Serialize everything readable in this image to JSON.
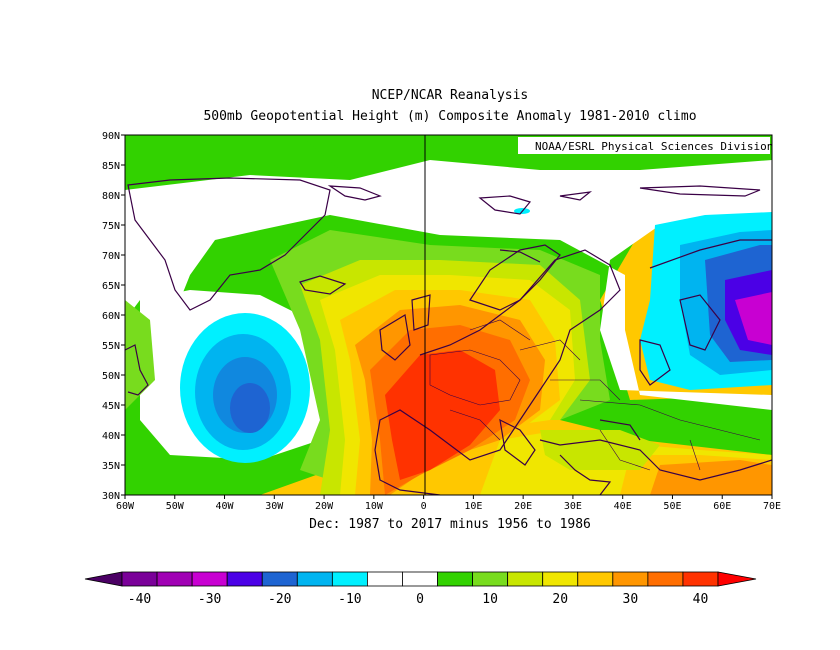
{
  "titles": {
    "line1": "NCEP/NCAR Reanalysis",
    "line2": "500mb Geopotential Height (m) Composite Anomaly 1981-2010 climo",
    "credit": "NOAA/ESRL Physical Sciences Division",
    "period": "Dec: 1987 to 2017 minus 1956 to 1986"
  },
  "map": {
    "lat_ticks": [
      "90N",
      "85N",
      "80N",
      "75N",
      "70N",
      "65N",
      "60N",
      "55N",
      "50N",
      "45N",
      "40N",
      "35N",
      "30N"
    ],
    "lon_ticks": [
      "60W",
      "50W",
      "40W",
      "30W",
      "20W",
      "10W",
      "0",
      "10E",
      "20E",
      "30E",
      "40E",
      "50E",
      "60E",
      "70E"
    ],
    "lat_range": [
      30,
      90
    ],
    "lon_range": [
      -60,
      70
    ],
    "anomaly_centers": [
      {
        "name": "north-atlantic-low",
        "lon": -35,
        "lat": 45,
        "value": -20
      },
      {
        "name": "europe-high",
        "lon": 0,
        "lat": 45,
        "value": 38
      },
      {
        "name": "siberia-low",
        "lon": 68,
        "lat": 58,
        "value": -30
      },
      {
        "name": "arctic-positive",
        "lon": -20,
        "lat": 88,
        "value": 8
      },
      {
        "name": "south-positive",
        "lon": 45,
        "lat": 33,
        "value": 28
      }
    ]
  },
  "colorbar": {
    "labels": [
      "-40",
      "-30",
      "-20",
      "-10",
      "0",
      "10",
      "20",
      "30",
      "40"
    ],
    "colors": [
      "#7a0099",
      "#a000b4",
      "#c800d2",
      "#4b00e6",
      "#1e64d2",
      "#00b4f0",
      "#00f0ff",
      "#ffffff",
      "#ffffff",
      "#32d200",
      "#78dc1e",
      "#c8e600",
      "#f0e600",
      "#ffc800",
      "#ff9600",
      "#ff6e00",
      "#ff3200"
    ],
    "low_color": "#4b0064",
    "high_color": "#ff0000"
  }
}
